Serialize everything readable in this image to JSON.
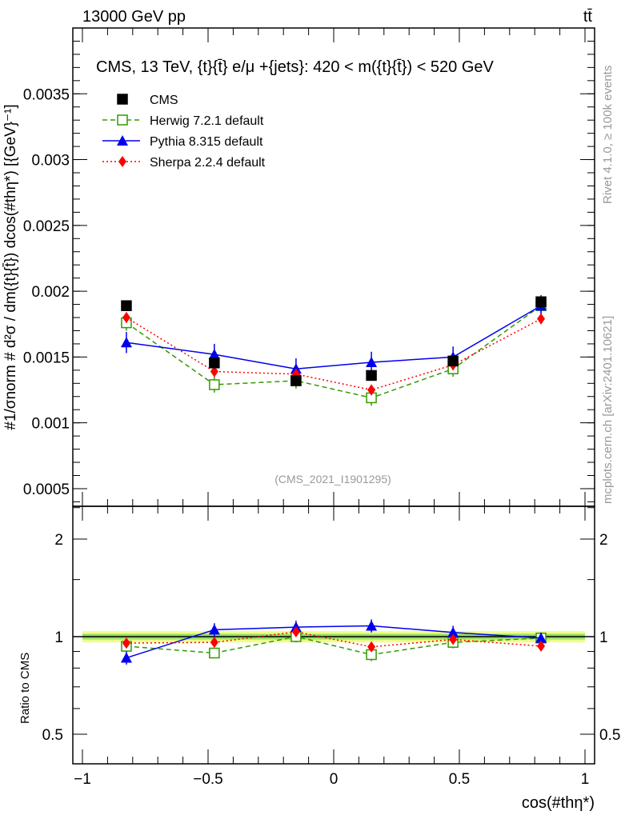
{
  "header": {
    "energy": "13000 GeV pp",
    "process": "tt̄"
  },
  "side": {
    "rivet": "Rivet 4.1.0, ≥ 100k events",
    "source": "mcplots.cern.ch [arXiv:2401.10621]"
  },
  "chart_data": [
    {
      "type": "scatter",
      "title": "CMS, 13 TeV, {t}{t̄} e/μ +{jets}: 420 < m({t}{t̄}) < 520 GeV",
      "annotation": "(CMS_2021_I1901295)",
      "ylabel": "#1/σnorm # d²σ / dm({t}{t̄}) dcos(#thη*) [{GeV}⁻¹]",
      "xlim": [
        -1.1,
        1.05
      ],
      "ylim": [
        0.000366,
        0.004
      ],
      "yticks": [
        "0.0005",
        "0.001",
        "0.0015",
        "0.002",
        "0.0025",
        "0.003",
        "0.0035"
      ],
      "x": [
        -0.825,
        -0.475,
        -0.15,
        0.15,
        0.475,
        0.825
      ],
      "legend_position": "top-left",
      "series": [
        {
          "name": "CMS",
          "color": "#000000",
          "marker": "square",
          "values": [
            0.00189,
            0.001455,
            0.00132,
            0.00136,
            0.00147,
            0.00192
          ],
          "errors": [
            3e-05,
            3e-05,
            3e-05,
            3e-05,
            3e-05,
            3e-05
          ]
        },
        {
          "name": "Herwig 7.2.1 default",
          "color": "#339900",
          "marker": "open-square",
          "dash": "6,4",
          "values": [
            0.00176,
            0.00129,
            0.00132,
            0.00119,
            0.00141,
            0.00189
          ],
          "errors": [
            6e-05,
            6e-05,
            6e-05,
            6e-05,
            6e-05,
            6e-05
          ]
        },
        {
          "name": "Pythia 8.315 default",
          "color": "#0000ee",
          "marker": "triangle",
          "dash": "",
          "values": [
            0.00161,
            0.00152,
            0.00141,
            0.00146,
            0.0015,
            0.00189
          ],
          "errors": [
            8e-05,
            8e-05,
            8e-05,
            8e-05,
            8e-05,
            8e-05
          ]
        },
        {
          "name": "Sherpa 2.2.4 default",
          "color": "#ff0000",
          "marker": "diamond",
          "dash": "2,3",
          "values": [
            0.0018,
            0.00139,
            0.00137,
            0.00125,
            0.00144,
            0.00179
          ],
          "errors": [
            4e-05,
            4e-05,
            4e-05,
            4e-05,
            4e-05,
            4e-05
          ]
        }
      ]
    },
    {
      "type": "scatter",
      "ylabel": "Ratio to CMS",
      "xlabel": "cos(#thη*)",
      "yscale": "log",
      "ylim": [
        0.406,
        2.52
      ],
      "yticks": [
        "0.5",
        "1",
        "2"
      ],
      "xticks": [
        "−1",
        "−0.5",
        "0",
        "0.5",
        "1"
      ],
      "x": [
        -0.825,
        -0.475,
        -0.15,
        0.15,
        0.475,
        0.825
      ],
      "band": {
        "inner": 0.02,
        "outer": 0.04,
        "inner_color": "#99dd66",
        "outer_color": "#eeff88"
      },
      "series": [
        {
          "name": "Herwig 7.2.1 default",
          "values": [
            0.934,
            0.89,
            1.0,
            0.88,
            0.96,
            0.99
          ],
          "errors": [
            0.03,
            0.03,
            0.04,
            0.04,
            0.04,
            0.03
          ]
        },
        {
          "name": "Pythia 8.315 default",
          "values": [
            0.86,
            1.05,
            1.07,
            1.08,
            1.03,
            0.99
          ],
          "errors": [
            0.04,
            0.05,
            0.05,
            0.05,
            0.05,
            0.04
          ]
        },
        {
          "name": "Sherpa 2.2.4 default",
          "values": [
            0.955,
            0.96,
            1.035,
            0.93,
            0.98,
            0.935
          ],
          "errors": [
            0.02,
            0.02,
            0.03,
            0.03,
            0.03,
            0.02
          ]
        }
      ]
    }
  ]
}
